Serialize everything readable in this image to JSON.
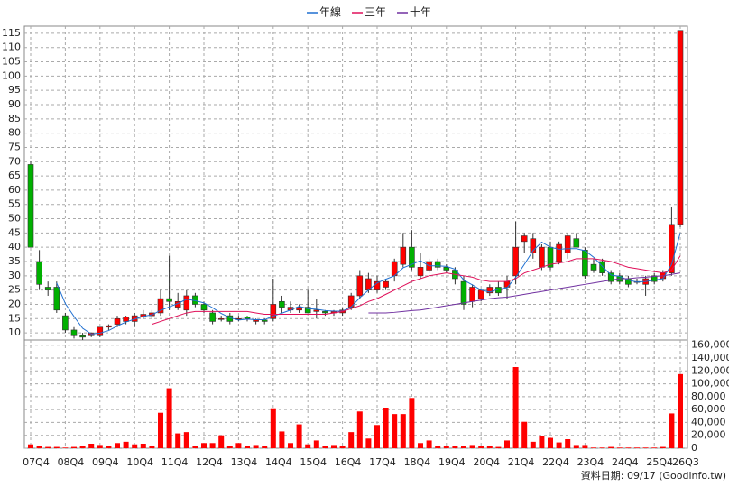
{
  "chart_data": {
    "type": "candlestick",
    "categories": [
      "07Q4",
      null,
      null,
      null,
      "08Q4",
      null,
      null,
      null,
      "09Q4",
      null,
      null,
      null,
      "10Q4",
      null,
      null,
      null,
      "11Q4",
      null,
      null,
      null,
      "12Q4",
      null,
      null,
      null,
      "13Q4",
      null,
      null,
      null,
      "14Q4",
      null,
      null,
      null,
      "15Q4",
      null,
      null,
      null,
      "16Q4",
      null,
      null,
      null,
      "17Q4",
      null,
      null,
      null,
      "18Q4",
      null,
      null,
      null,
      "19Q4",
      null,
      null,
      null,
      "20Q4",
      null,
      null,
      null,
      "21Q4",
      null,
      null,
      null,
      "22Q4",
      null,
      null,
      null,
      "23Q4",
      null,
      null,
      null,
      "24Q4",
      null,
      null,
      null,
      "25Q4",
      null,
      null,
      "26Q3"
    ],
    "open": [
      69,
      35,
      26,
      26,
      16,
      11,
      9,
      9,
      9,
      12,
      13,
      14,
      14,
      15.5,
      16,
      17,
      22,
      19,
      18,
      23,
      20,
      17,
      15,
      16,
      15,
      15.5,
      14,
      14.5,
      15,
      21,
      18,
      18,
      19,
      17.5,
      17.5,
      17,
      17,
      19,
      23,
      25,
      25,
      26,
      30,
      34,
      40,
      30,
      32,
      35,
      33,
      32,
      28,
      21,
      22,
      24,
      26,
      26,
      30,
      42,
      38,
      33,
      40,
      35,
      38,
      43,
      39,
      34,
      35,
      31,
      30,
      29,
      28,
      27,
      30,
      29,
      31,
      48
    ],
    "high": [
      70,
      39,
      28,
      28,
      17,
      12,
      10,
      10,
      12,
      13,
      16,
      16,
      17,
      18,
      18,
      25,
      37,
      24,
      25,
      24,
      21,
      18,
      16,
      17,
      16,
      16,
      15,
      15,
      29,
      23,
      21,
      20,
      25,
      22,
      18,
      18,
      19,
      24,
      32,
      31,
      30,
      29,
      36,
      45,
      46,
      38,
      36,
      36,
      34,
      33,
      30,
      27,
      25,
      27,
      28,
      30,
      49,
      45,
      45,
      41,
      42,
      42,
      45,
      45,
      40,
      36,
      36,
      32,
      31,
      30,
      29,
      30,
      31,
      32,
      54,
      116
    ],
    "low": [
      40,
      25,
      23,
      17,
      10,
      8,
      7.5,
      8.5,
      8.5,
      11,
      12,
      13,
      12,
      15,
      15,
      16,
      18,
      18,
      16,
      19,
      17,
      13,
      14,
      13,
      14,
      14,
      13,
      13,
      14,
      17,
      17,
      17,
      17,
      15,
      16,
      16,
      16,
      18,
      22,
      24,
      24,
      25,
      28,
      33,
      32,
      29,
      31,
      32,
      31,
      27,
      18,
      19,
      21,
      23,
      23,
      22,
      27,
      38,
      36,
      32,
      32,
      34,
      36,
      40,
      29,
      31,
      30,
      27,
      27,
      26,
      27,
      23,
      27,
      28,
      30,
      47
    ],
    "close": [
      40,
      27,
      25,
      18,
      11,
      9,
      8.5,
      10,
      12,
      12.5,
      15,
      15.5,
      16,
      16.5,
      17,
      22,
      21,
      21,
      23,
      20,
      18,
      14,
      15,
      14,
      15,
      15,
      14.5,
      14,
      20,
      19,
      19,
      19,
      17,
      18,
      17,
      17.5,
      18,
      23,
      30,
      29,
      28,
      28,
      35,
      40,
      33,
      33,
      35,
      33,
      32,
      29,
      20,
      26,
      25,
      26,
      24,
      28,
      40,
      44,
      43,
      40,
      33,
      41,
      44,
      40,
      30,
      32,
      31,
      28,
      28,
      27,
      28,
      29,
      28,
      31,
      48,
      116
    ],
    "up_color": "#ff0000",
    "down_color": "#00b000",
    "series": [
      {
        "name": "年線",
        "color": "#1f6fd0",
        "values": [
          null,
          null,
          null,
          27.5,
          20.25,
          15.75,
          11.6,
          9.6,
          9.9,
          10.8,
          12.4,
          13.8,
          14.8,
          15.8,
          16.3,
          17.9,
          19.1,
          20.3,
          21.8,
          21.3,
          20.5,
          18.8,
          16.8,
          15.3,
          14.5,
          14.8,
          14.6,
          14.6,
          15.9,
          16.9,
          18,
          19.3,
          18.5,
          18.3,
          17.8,
          17.6,
          17.6,
          19.1,
          22.3,
          25,
          27.5,
          28.8,
          30,
          32.8,
          34,
          35.3,
          33.5,
          33.5,
          33.3,
          32.3,
          28.5,
          26.8,
          25,
          24.3,
          25.3,
          25.8,
          29.5,
          34,
          38.8,
          41.8,
          40,
          39.3,
          39.5,
          39.5,
          38.8,
          36.5,
          33.3,
          30.3,
          29.8,
          28.5,
          27.8,
          28,
          28.5,
          29,
          34,
          45
        ]
      },
      {
        "name": "三年",
        "color": "#e0105a",
        "values": [
          null,
          null,
          null,
          null,
          null,
          null,
          null,
          null,
          null,
          null,
          null,
          null,
          null,
          null,
          13,
          14,
          15,
          16,
          17,
          17.5,
          17.5,
          17.5,
          17.5,
          17.5,
          17.5,
          17.5,
          17,
          16.5,
          16.5,
          16.5,
          16.5,
          16.5,
          16.5,
          16.5,
          16.5,
          17,
          17.5,
          18.5,
          19.5,
          21,
          22,
          23.5,
          25,
          26.5,
          28,
          29,
          30,
          30.5,
          31,
          30.5,
          30,
          29.5,
          28.5,
          28,
          28,
          28,
          29,
          31,
          32,
          33,
          34,
          34.5,
          35,
          36,
          36,
          36,
          35.5,
          35,
          34,
          33,
          32.5,
          32,
          31.5,
          31,
          32,
          37
        ]
      },
      {
        "name": "十年",
        "color": "#7030a0",
        "values": [
          null,
          null,
          null,
          null,
          null,
          null,
          null,
          null,
          null,
          null,
          null,
          null,
          null,
          null,
          null,
          null,
          null,
          null,
          null,
          null,
          null,
          null,
          null,
          null,
          null,
          null,
          null,
          null,
          null,
          null,
          null,
          null,
          null,
          null,
          null,
          null,
          null,
          null,
          null,
          17,
          17,
          17,
          17.2,
          17.5,
          17.8,
          18,
          18.5,
          19,
          19.5,
          20,
          20.5,
          21,
          21.5,
          22,
          22.3,
          22.5,
          23,
          23.5,
          24,
          24.5,
          25,
          25.5,
          26,
          26.5,
          27,
          27.5,
          28,
          28.5,
          29,
          29,
          29.3,
          29.5,
          29.8,
          30,
          30.5,
          31
        ]
      }
    ],
    "ylim": [
      7.5,
      117.5
    ],
    "yticks": [
      10,
      15,
      20,
      25,
      30,
      35,
      40,
      45,
      50,
      55,
      60,
      65,
      70,
      75,
      80,
      85,
      90,
      95,
      100,
      105,
      110,
      115
    ],
    "volume": {
      "color": "#ff0000",
      "values": [
        6000,
        3000,
        2000,
        2000,
        1000,
        2000,
        4000,
        7000,
        5000,
        3000,
        8000,
        10000,
        6000,
        7000,
        3000,
        55000,
        93000,
        23000,
        25000,
        3000,
        8000,
        8000,
        20000,
        3000,
        8000,
        4000,
        5000,
        3000,
        62000,
        26000,
        8000,
        37000,
        6000,
        12000,
        4000,
        5000,
        4000,
        25000,
        57000,
        15000,
        36000,
        63000,
        53000,
        53000,
        78000,
        8000,
        12000,
        4000,
        3000,
        3000,
        3000,
        5000,
        3000,
        4000,
        2000,
        12000,
        126000,
        41000,
        10000,
        19000,
        16000,
        9000,
        14000,
        5000,
        5000,
        1000,
        1000,
        2000,
        1000,
        1000,
        1000,
        1000,
        1000,
        2000,
        54000,
        115000
      ],
      "ylim": [
        0,
        168000
      ],
      "yticks": [
        0,
        {
          "value": 20000,
          "label": "20,000"
        },
        {
          "value": 40000,
          "label": "40,000"
        },
        {
          "value": 60000,
          "label": "60,000"
        },
        {
          "value": 80000,
          "label": "80,000"
        },
        {
          "value": 100000,
          "label": "100,000"
        },
        {
          "value": 120000,
          "label": "120,000"
        },
        {
          "value": 140000,
          "label": "140,000"
        },
        {
          "value": 160000,
          "label": "160,000"
        }
      ]
    },
    "grid": true,
    "legend": "top",
    "footer": "資料日期: 09/17   (Goodinfo.tw)"
  }
}
